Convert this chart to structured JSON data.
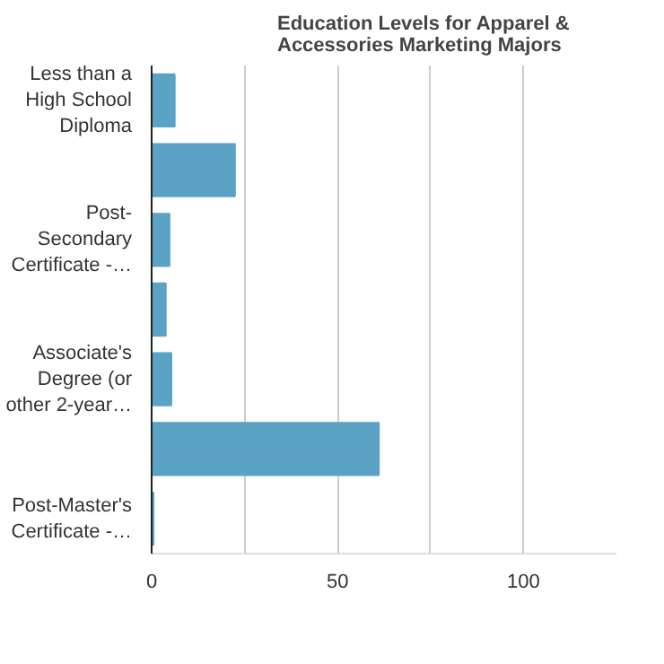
{
  "chart_data": {
    "type": "bar",
    "orientation": "horizontal",
    "title": "Education Levels for Apparel & Accessories Marketing Majors",
    "categories": [
      "Less than a High School Diploma",
      null,
      "Post-Secondary Certificate -…",
      null,
      "Associate's Degree (or other 2-year…",
      null,
      "Post-Master's Certificate -…"
    ],
    "values": [
      6.2,
      22.4,
      4.8,
      3.8,
      5.3,
      61.1,
      0.5
    ],
    "color": "#5ba3c4",
    "xlim": [
      0,
      125
    ],
    "xticks": [
      0,
      {
        "value": 25,
        "label": null
      },
      50,
      {
        "value": 75,
        "label": null
      },
      100
    ],
    "grid": "x"
  }
}
